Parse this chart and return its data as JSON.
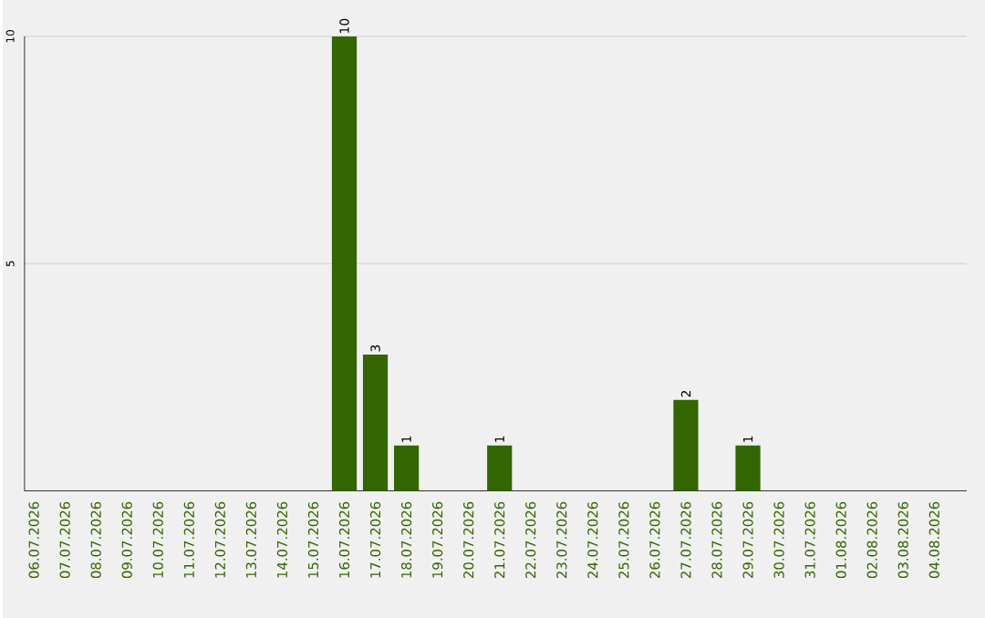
{
  "chart_data": {
    "type": "bar",
    "categories": [
      "06.07.2026",
      "07.07.2026",
      "08.07.2026",
      "09.07.2026",
      "10.07.2026",
      "11.07.2026",
      "12.07.2026",
      "13.07.2026",
      "14.07.2026",
      "15.07.2026",
      "16.07.2026",
      "17.07.2026",
      "18.07.2026",
      "19.07.2026",
      "20.07.2026",
      "21.07.2026",
      "22.07.2026",
      "23.07.2026",
      "24.07.2026",
      "25.07.2026",
      "26.07.2026",
      "27.07.2026",
      "28.07.2026",
      "29.07.2026",
      "30.07.2026",
      "31.07.2026",
      "01.08.2026",
      "02.08.2026",
      "03.08.2026",
      "04.08.2026"
    ],
    "values": [
      0,
      0,
      0,
      0,
      0,
      0,
      0,
      0,
      0,
      0,
      10,
      3,
      1,
      0,
      0,
      1,
      0,
      0,
      0,
      0,
      0,
      2,
      0,
      1,
      0,
      0,
      0,
      0,
      0,
      0
    ],
    "value_labels": [
      null,
      null,
      null,
      null,
      null,
      null,
      null,
      null,
      null,
      null,
      "10",
      "3",
      "1",
      null,
      null,
      "1",
      null,
      null,
      null,
      null,
      null,
      "2",
      null,
      "1",
      null,
      null,
      null,
      null,
      null,
      null
    ],
    "color": "#336600",
    "ylim": [
      0,
      10
    ],
    "yticks": [
      5,
      10
    ],
    "grid": "y"
  }
}
